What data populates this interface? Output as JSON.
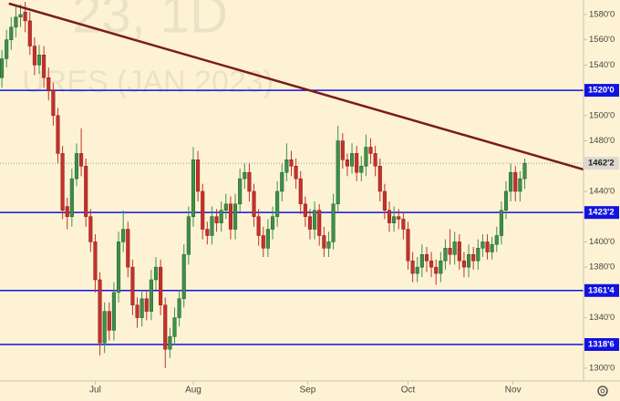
{
  "chart_data": {
    "type": "candlestick",
    "watermark": [
      "23, 1D",
      "URES (JAN 2023)"
    ],
    "open": [
      1530,
      1545,
      1560,
      1570,
      1578,
      1582,
      1575,
      1555,
      1540,
      1548,
      1530,
      1520,
      1500,
      1470,
      1428,
      1420,
      1450,
      1470,
      1460,
      1420,
      1400,
      1370,
      1320,
      1345,
      1330,
      1360,
      1400,
      1410,
      1380,
      1350,
      1340,
      1355,
      1345,
      1370,
      1380,
      1350,
      1315,
      1325,
      1340,
      1355,
      1390,
      1420,
      1465,
      1440,
      1410,
      1405,
      1420,
      1415,
      1425,
      1430,
      1410,
      1430,
      1450,
      1455,
      1440,
      1420,
      1405,
      1395,
      1410,
      1420,
      1440,
      1455,
      1465,
      1460,
      1450,
      1430,
      1420,
      1410,
      1425,
      1405,
      1395,
      1400,
      1430,
      1480,
      1465,
      1460,
      1470,
      1455,
      1460,
      1475,
      1470,
      1460,
      1440,
      1425,
      1415,
      1420,
      1418,
      1410,
      1385,
      1375,
      1380,
      1390,
      1385,
      1380,
      1375,
      1385,
      1395,
      1390,
      1400,
      1385,
      1380,
      1390,
      1385,
      1395,
      1400,
      1392,
      1398,
      1405,
      1425,
      1440,
      1455,
      1440,
      1450
    ],
    "high": [
      1552,
      1568,
      1578,
      1586,
      1588,
      1590,
      1582,
      1562,
      1556,
      1555,
      1538,
      1526,
      1506,
      1476,
      1435,
      1458,
      1478,
      1490,
      1466,
      1426,
      1406,
      1376,
      1352,
      1352,
      1368,
      1408,
      1425,
      1416,
      1386,
      1356,
      1362,
      1362,
      1378,
      1388,
      1386,
      1356,
      1332,
      1348,
      1362,
      1398,
      1428,
      1475,
      1472,
      1446,
      1416,
      1428,
      1426,
      1432,
      1438,
      1436,
      1438,
      1458,
      1462,
      1462,
      1446,
      1426,
      1412,
      1418,
      1428,
      1448,
      1462,
      1478,
      1472,
      1466,
      1456,
      1436,
      1426,
      1432,
      1430,
      1412,
      1408,
      1438,
      1492,
      1486,
      1470,
      1478,
      1476,
      1468,
      1485,
      1482,
      1476,
      1466,
      1446,
      1432,
      1428,
      1426,
      1424,
      1416,
      1392,
      1388,
      1398,
      1396,
      1392,
      1386,
      1392,
      1402,
      1410,
      1408,
      1406,
      1392,
      1398,
      1396,
      1402,
      1406,
      1406,
      1404,
      1412,
      1432,
      1448,
      1462,
      1460,
      1456,
      1466
    ],
    "low": [
      1522,
      1538,
      1552,
      1562,
      1570,
      1566,
      1548,
      1532,
      1533,
      1522,
      1512,
      1492,
      1462,
      1418,
      1410,
      1412,
      1444,
      1452,
      1412,
      1392,
      1360,
      1310,
      1312,
      1322,
      1322,
      1352,
      1392,
      1372,
      1342,
      1332,
      1333,
      1338,
      1338,
      1362,
      1342,
      1300,
      1308,
      1318,
      1333,
      1348,
      1382,
      1412,
      1432,
      1402,
      1398,
      1398,
      1408,
      1408,
      1418,
      1402,
      1402,
      1424,
      1442,
      1432,
      1412,
      1397,
      1388,
      1388,
      1402,
      1412,
      1432,
      1448,
      1452,
      1442,
      1422,
      1412,
      1402,
      1402,
      1397,
      1388,
      1388,
      1394,
      1424,
      1458,
      1452,
      1454,
      1448,
      1448,
      1452,
      1462,
      1452,
      1432,
      1418,
      1408,
      1408,
      1410,
      1402,
      1378,
      1368,
      1368,
      1372,
      1376,
      1372,
      1366,
      1368,
      1378,
      1382,
      1382,
      1378,
      1372,
      1372,
      1378,
      1378,
      1388,
      1386,
      1386,
      1392,
      1398,
      1418,
      1432,
      1432,
      1432,
      1442
    ],
    "close": [
      1545,
      1560,
      1570,
      1578,
      1580,
      1575,
      1555,
      1540,
      1548,
      1530,
      1520,
      1500,
      1470,
      1425,
      1420,
      1450,
      1470,
      1460,
      1420,
      1400,
      1370,
      1320,
      1345,
      1330,
      1360,
      1400,
      1410,
      1380,
      1350,
      1340,
      1355,
      1345,
      1370,
      1380,
      1350,
      1315,
      1325,
      1340,
      1355,
      1390,
      1420,
      1465,
      1440,
      1410,
      1405,
      1420,
      1415,
      1425,
      1430,
      1410,
      1430,
      1450,
      1455,
      1440,
      1420,
      1405,
      1395,
      1410,
      1420,
      1440,
      1455,
      1465,
      1460,
      1450,
      1430,
      1420,
      1410,
      1425,
      1405,
      1395,
      1400,
      1430,
      1480,
      1465,
      1460,
      1470,
      1455,
      1460,
      1475,
      1470,
      1460,
      1440,
      1425,
      1415,
      1420,
      1418,
      1410,
      1385,
      1375,
      1380,
      1390,
      1385,
      1380,
      1375,
      1385,
      1395,
      1390,
      1400,
      1385,
      1380,
      1390,
      1385,
      1395,
      1400,
      1392,
      1398,
      1405,
      1425,
      1440,
      1455,
      1440,
      1450,
      1462.25
    ],
    "up_color": "#3f8f4a",
    "down_color": "#c4312b",
    "xlim": [
      -0.4,
      124.6
    ],
    "xticks": [
      {
        "value": 20,
        "label": "Jul"
      },
      {
        "value": 41,
        "label": "Aug"
      },
      {
        "value": 65.5,
        "label": "Sep"
      },
      {
        "value": 87,
        "label": "Oct"
      },
      {
        "value": 109.5,
        "label": "Nov"
      }
    ],
    "ylim": [
      1289.9,
      1591.5
    ],
    "yticks": [
      {
        "value": 1300,
        "label": "1300'0"
      },
      {
        "value": 1320,
        "label": "1320'0"
      },
      {
        "value": 1340,
        "label": "1340'0"
      },
      {
        "value": 1360,
        "label": "1360'0"
      },
      {
        "value": 1380,
        "label": "1380'0"
      },
      {
        "value": 1400,
        "label": "1400'0"
      },
      {
        "value": 1420,
        "label": "1420'0"
      },
      {
        "value": 1440,
        "label": "1440'0"
      },
      {
        "value": 1460,
        "label": "1460'0"
      },
      {
        "value": 1480,
        "label": "1480'0"
      },
      {
        "value": 1500,
        "label": "1500'0"
      },
      {
        "value": 1520,
        "label": "1520'0"
      },
      {
        "value": 1540,
        "label": "1540'0"
      },
      {
        "value": 1560,
        "label": "1560'0"
      },
      {
        "value": 1580,
        "label": "1580'0"
      }
    ],
    "levels": [
      {
        "value": 1520,
        "label": "1520'0"
      },
      {
        "value": 1423.25,
        "label": "1423'2"
      },
      {
        "value": 1361.5,
        "label": "1361'4"
      },
      {
        "value": 1318.75,
        "label": "1318'6"
      }
    ],
    "level_color": "#1212e0",
    "last_price": {
      "value": 1462.25,
      "label": "1462'2"
    },
    "trendline": {
      "x": [
        1.5,
        124.6
      ],
      "y": [
        1588.7,
        1457.3
      ],
      "color": "#7a1c1c"
    }
  }
}
